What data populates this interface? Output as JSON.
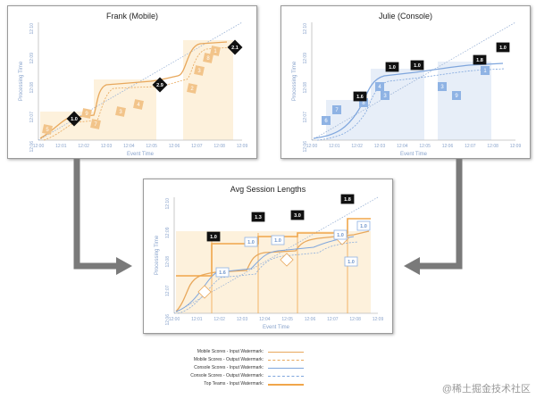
{
  "colors": {
    "mobile": "#e8a85c",
    "console": "#7fa6dd",
    "team": "#f0a64a",
    "arrow": "#7a7a7a",
    "fill_mobile": "#fdf1dc",
    "fill_console": "#e7eef8"
  },
  "panels": {
    "frank": {
      "title": "Frank (Mobile)",
      "xlabel": "Event Time",
      "ylabel": "Processing Time",
      "xticks": [
        "12:00",
        "12:01",
        "12:02",
        "12:03",
        "12:04",
        "12:05",
        "12:06",
        "12:07",
        "12:08",
        "12:09"
      ],
      "yticks": [
        "12:10",
        "12:09",
        "12:08",
        "12:07",
        "12:06"
      ],
      "scores": [
        "5",
        "9",
        "7",
        "3",
        "4",
        "8",
        "3",
        "1",
        "2"
      ],
      "badges": [
        "1.0",
        "2.9",
        "2.1"
      ]
    },
    "julie": {
      "title": "Julie (Console)",
      "xlabel": "Event Time",
      "ylabel": "Processing Time",
      "xticks": [
        "12:00",
        "12:01",
        "12:02",
        "12:03",
        "12:04",
        "12:05",
        "12:06",
        "12:07",
        "12:08",
        "12:09"
      ],
      "yticks": [
        "12:10",
        "12:09",
        "12:08",
        "12:07",
        "12:06"
      ],
      "scores": [
        "6",
        "7",
        "8",
        "4",
        "3",
        "3",
        "9",
        "1"
      ],
      "badges": [
        "1.6",
        "1.0",
        "1.0",
        "1.8",
        "1.0"
      ]
    },
    "avg": {
      "title": "Avg Session Lengths",
      "xlabel": "Event Time",
      "ylabel": "Processing Time",
      "xticks": [
        "12:00",
        "12:01",
        "12:02",
        "12:03",
        "12:04",
        "12:05",
        "12:06",
        "12:07",
        "12:08",
        "12:09"
      ],
      "yticks": [
        "12:10",
        "12:09",
        "12:08",
        "12:07",
        "12:06"
      ],
      "badges": [
        "1.0",
        "1.3",
        "3.0",
        "1.8"
      ],
      "outline_badges": [
        "1.6",
        "1.0",
        "1.0",
        "1.0",
        "1.0",
        "1.0"
      ]
    }
  },
  "legend": [
    {
      "label": "Mobile Scores - Input Watermark:",
      "style": "mobile-input"
    },
    {
      "label": "Mobile Scores - Output Watermark:",
      "style": "mobile-output"
    },
    {
      "label": "Console Scores - Input Watermark:",
      "style": "console-input"
    },
    {
      "label": "Console Scores - Output Watermark:",
      "style": "console-output"
    },
    {
      "label": "Top Teams - Input Watermark:",
      "style": "team-input"
    }
  ],
  "watermark": "@稀土掘金技术社区"
}
